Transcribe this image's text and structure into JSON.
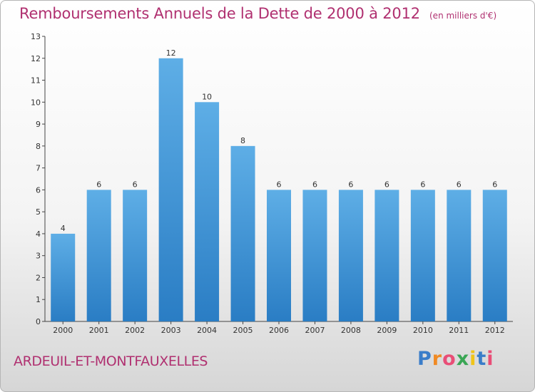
{
  "chart_data": {
    "type": "bar",
    "title": "Remboursements Annuels de la Dette de 2000 à 2012",
    "unit_note": "(en milliers d'€)",
    "categories": [
      "2000",
      "2001",
      "2002",
      "2003",
      "2004",
      "2005",
      "2006",
      "2007",
      "2008",
      "2009",
      "2010",
      "2011",
      "2012"
    ],
    "values": [
      4,
      6,
      6,
      12,
      10,
      8,
      6,
      6,
      6,
      6,
      6,
      6,
      6
    ],
    "ylim": [
      0,
      13
    ],
    "yticks": [
      0,
      1,
      2,
      3,
      4,
      5,
      6,
      7,
      8,
      9,
      10,
      11,
      12,
      13
    ],
    "grid": false,
    "colors": {
      "bar_light": "#5eaee6",
      "bar_dark": "#2a7dc4",
      "title": "#b03070"
    }
  },
  "footer": {
    "commune": "ARDEUIL-ET-MONTFAUXELLES",
    "logo": [
      "P",
      "r",
      "o",
      "x",
      "i",
      "t",
      "i"
    ],
    "logo_colors": [
      "#3a7dc9",
      "#f08a24",
      "#e94e77",
      "#3aa655",
      "#f0c419",
      "#3a7dc9",
      "#e94e77"
    ]
  }
}
